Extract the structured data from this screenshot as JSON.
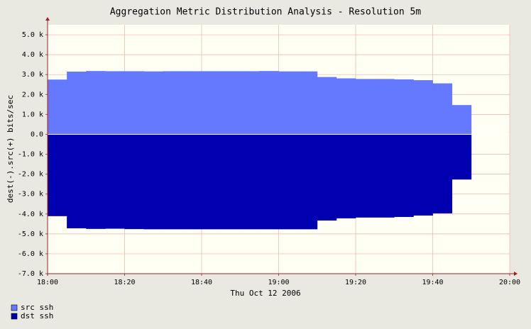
{
  "chart_data": {
    "type": "step-area",
    "title": "Aggregation Metric Distribution Analysis - Resolution 5m",
    "y_label": "dest(-).src(+) bits/sec",
    "x_label": "Thu Oct 12 2006",
    "x": [
      "18:00",
      "18:05",
      "18:10",
      "18:15",
      "18:20",
      "18:25",
      "18:30",
      "18:35",
      "18:40",
      "18:45",
      "18:50",
      "18:55",
      "19:00",
      "19:05",
      "19:10",
      "19:15",
      "19:20",
      "19:25",
      "19:30",
      "19:35",
      "19:40",
      "19:45"
    ],
    "xlim": [
      "18:00",
      "20:00"
    ],
    "xticks": [
      "18:00",
      "18:20",
      "18:40",
      "19:00",
      "19:20",
      "19:40",
      "20:00"
    ],
    "ylim": [
      -7000,
      5500
    ],
    "yticks": [
      {
        "value": 5000,
        "label": "5.0 k"
      },
      {
        "value": 4000,
        "label": "4.0 k"
      },
      {
        "value": 3000,
        "label": "3.0 k"
      },
      {
        "value": 2000,
        "label": "2.0 k"
      },
      {
        "value": 1000,
        "label": "1.0 k"
      },
      {
        "value": 0,
        "label": "0.0"
      },
      {
        "value": -1000,
        "label": "-1.0 k"
      },
      {
        "value": -2000,
        "label": "-2.0 k"
      },
      {
        "value": -3000,
        "label": "-3.0 k"
      },
      {
        "value": -4000,
        "label": "-4.0 k"
      },
      {
        "value": -5000,
        "label": "-5.0 k"
      },
      {
        "value": -6000,
        "label": "-6.0 k"
      },
      {
        "value": -7000,
        "label": "-7.0 k"
      }
    ],
    "grid": true,
    "series": [
      {
        "name": "src ssh",
        "color": "#6479ff",
        "values": [
          2750,
          3150,
          3180,
          3170,
          3170,
          3160,
          3170,
          3170,
          3170,
          3170,
          3170,
          3180,
          3160,
          3160,
          2880,
          2810,
          2780,
          2780,
          2760,
          2720,
          2560,
          1470
        ]
      },
      {
        "name": "dst ssh",
        "color": "#0000b0",
        "values": [
          -4110,
          -4720,
          -4750,
          -4740,
          -4760,
          -4770,
          -4770,
          -4770,
          -4770,
          -4770,
          -4770,
          -4770,
          -4770,
          -4770,
          -4330,
          -4220,
          -4180,
          -4180,
          -4150,
          -4080,
          -3970,
          -2270
        ]
      }
    ]
  }
}
